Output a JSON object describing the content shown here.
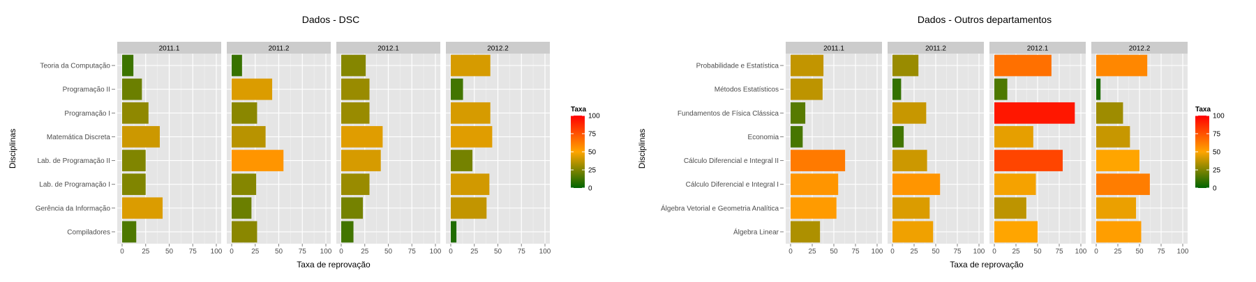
{
  "colors": {
    "panel_bg": "#e5e5e5",
    "grid_major": "#ffffff",
    "strip_bg": "#cccccc",
    "text_dark": "#000000",
    "text_tick": "#4d4d4d",
    "scale_low": "#006400",
    "scale_mid": "#ffa500",
    "scale_high": "#ff0000"
  },
  "chart_data": [
    {
      "type": "bar",
      "orientation": "horizontal",
      "title": "Dados - DSC",
      "xlabel": "Taxa de reprovação",
      "ylabel": "Disciplinas",
      "xlim": [
        0,
        100
      ],
      "x_ticks": [
        "0",
        "25",
        "50",
        "75",
        "100"
      ],
      "grid": true,
      "facets": [
        "2011.1",
        "2011.2",
        "2012.1",
        "2012.2"
      ],
      "categories": [
        "Teoria da Computação",
        "Programação II",
        "Programação I",
        "Matemática Discreta",
        "Lab. de Programação II",
        "Lab. de Programação I",
        "Gerência da Informação",
        "Compiladores"
      ],
      "series": [
        {
          "name": "2011.1",
          "values": [
            12,
            21,
            28,
            40,
            25,
            25,
            43,
            15
          ]
        },
        {
          "name": "2011.2",
          "values": [
            11,
            43,
            27,
            36,
            55,
            26,
            21,
            27
          ]
        },
        {
          "name": "2012.1",
          "values": [
            26,
            30,
            30,
            44,
            42,
            30,
            23,
            13
          ]
        },
        {
          "name": "2012.2",
          "values": [
            42,
            13,
            42,
            44,
            23,
            41,
            38,
            6
          ]
        }
      ],
      "legend": {
        "title": "Taxa",
        "position": "right",
        "ticks": [
          "100",
          "75",
          "50",
          "25",
          "0"
        ]
      }
    },
    {
      "type": "bar",
      "orientation": "horizontal",
      "title": "Dados - Outros departamentos",
      "xlabel": "Taxa de reprovação",
      "ylabel": "Disciplinas",
      "xlim": [
        0,
        100
      ],
      "x_ticks": [
        "0",
        "25",
        "50",
        "75",
        "100"
      ],
      "grid": true,
      "facets": [
        "2011.1",
        "2011.2",
        "2012.1",
        "2012.2"
      ],
      "categories": [
        "Probabilidade e Estatística",
        "Métodos Estatísticos",
        "Fundamentos de Física Clássica",
        "Economia",
        "Cálculo Diferencial e Integral II",
        "Cálculo Diferencial e Integral I",
        "Álgebra Vetorial e Geometria Analítica",
        "Álgebra Linear"
      ],
      "series": [
        {
          "name": "2011.1",
          "values": [
            38,
            37,
            17,
            14,
            63,
            55,
            53,
            34
          ]
        },
        {
          "name": "2011.2",
          "values": [
            30,
            10,
            39,
            13,
            40,
            55,
            43,
            47
          ]
        },
        {
          "name": "2012.1",
          "values": [
            66,
            15,
            93,
            45,
            79,
            48,
            37,
            50
          ]
        },
        {
          "name": "2012.2",
          "values": [
            59,
            5,
            31,
            39,
            50,
            62,
            46,
            52
          ]
        }
      ],
      "legend": {
        "title": "Taxa",
        "position": "right",
        "ticks": [
          "100",
          "75",
          "50",
          "25",
          "0"
        ]
      }
    }
  ]
}
